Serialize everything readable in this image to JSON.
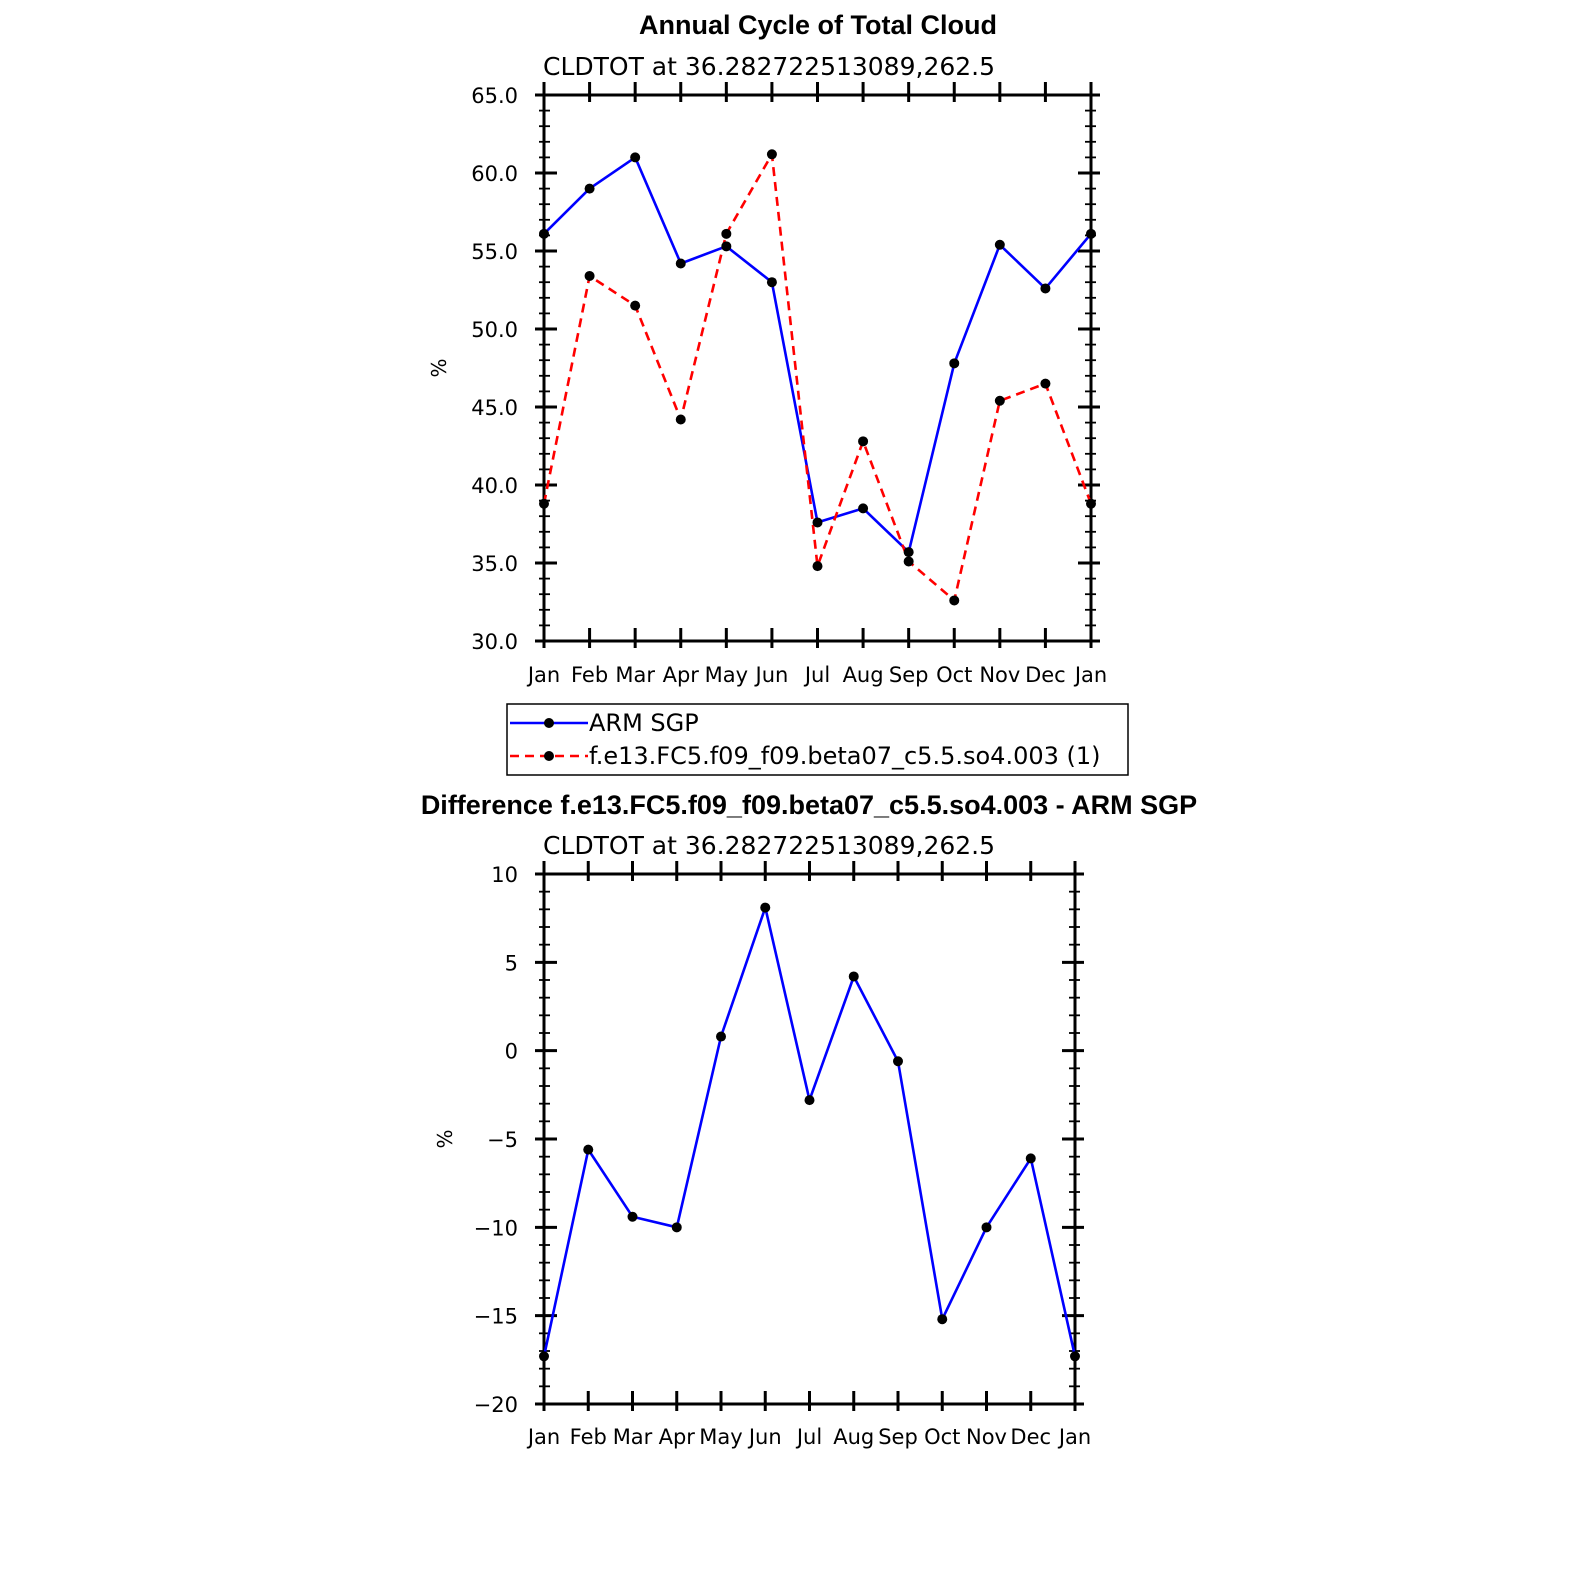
{
  "chart_data": [
    {
      "type": "line",
      "title": "Annual Cycle of Total Cloud",
      "subtitle": "CLDTOT at 36.282722513089,262.5",
      "ylabel": "%",
      "ylim": [
        30,
        65
      ],
      "yticks": [
        "30.0",
        "35.0",
        "40.0",
        "45.0",
        "50.0",
        "55.0",
        "60.0",
        "65.0"
      ],
      "categories": [
        "Jan",
        "Feb",
        "Mar",
        "Apr",
        "May",
        "Jun",
        "Jul",
        "Aug",
        "Sep",
        "Oct",
        "Nov",
        "Dec",
        "Jan"
      ],
      "legend_position": "bottom",
      "series": [
        {
          "name": "ARM SGP",
          "color": "#0000ff",
          "dash": "solid",
          "values": [
            56.1,
            59.0,
            61.0,
            54.2,
            55.3,
            53.0,
            37.6,
            38.5,
            35.7,
            47.8,
            55.4,
            52.6,
            56.1
          ]
        },
        {
          "name": "f.e13.FC5.f09_f09.beta07_c5.5.so4.003 (1)",
          "color": "#ff0000",
          "dash": "dashed",
          "values": [
            38.8,
            53.4,
            51.5,
            44.2,
            56.1,
            61.2,
            34.8,
            42.8,
            35.1,
            32.6,
            45.4,
            46.5,
            38.8
          ]
        }
      ]
    },
    {
      "type": "line",
      "title": "Difference f.e13.FC5.f09_f09.beta07_c5.5.so4.003 - ARM SGP",
      "subtitle": "CLDTOT at 36.282722513089,262.5",
      "ylabel": "%",
      "ylim": [
        -20,
        10
      ],
      "yticks": [
        "−20",
        "−15",
        "−10",
        "−5",
        "0",
        "5",
        "10"
      ],
      "categories": [
        "Jan",
        "Feb",
        "Mar",
        "Apr",
        "May",
        "Jun",
        "Jul",
        "Aug",
        "Sep",
        "Oct",
        "Nov",
        "Dec",
        "Jan"
      ],
      "series": [
        {
          "color": "#0000ff",
          "dash": "solid",
          "values": [
            -17.3,
            -5.6,
            -9.4,
            -10.0,
            0.8,
            8.1,
            -2.8,
            4.2,
            -0.6,
            -15.2,
            -10.0,
            -6.1,
            -17.3
          ]
        }
      ]
    }
  ]
}
